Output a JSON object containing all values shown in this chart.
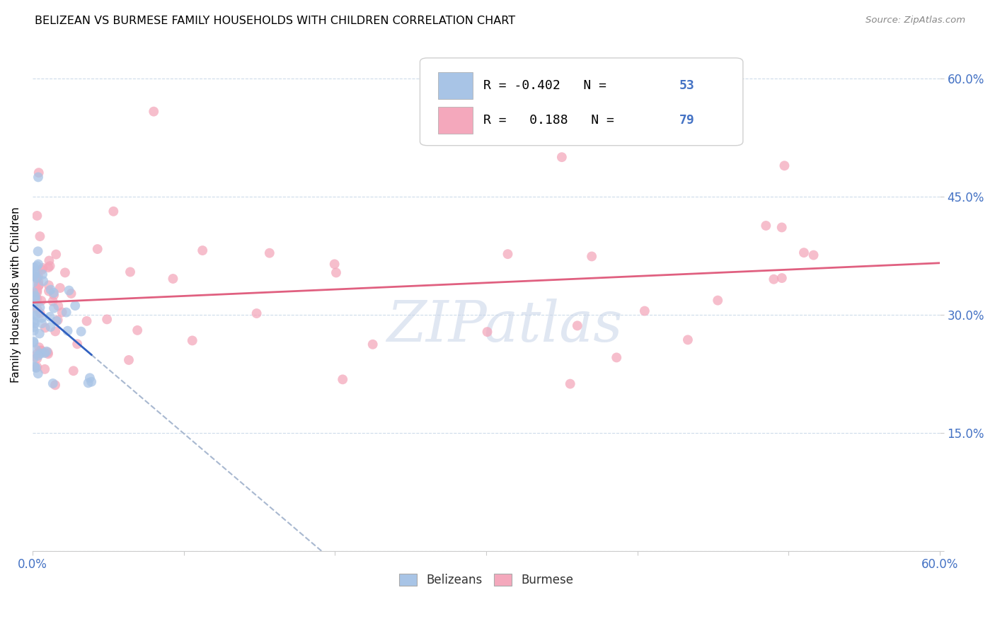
{
  "title": "BELIZEAN VS BURMESE FAMILY HOUSEHOLDS WITH CHILDREN CORRELATION CHART",
  "source": "Source: ZipAtlas.com",
  "ylabel": "Family Households with Children",
  "belizean_R": -0.402,
  "belizean_N": 53,
  "burmese_R": 0.188,
  "burmese_N": 79,
  "belizean_color": "#a8c4e6",
  "burmese_color": "#f4a8bc",
  "belizean_line_color": "#3060c0",
  "burmese_line_color": "#e06080",
  "dashed_line_color": "#a8b8d0",
  "watermark_color": "#c8d4e8",
  "stat_box_color": "#4472c4",
  "legend_label_color": "#333333",
  "grid_color": "#c8d8e8",
  "tick_label_color": "#4472c4",
  "title_color": "#000000",
  "source_color": "#888888"
}
